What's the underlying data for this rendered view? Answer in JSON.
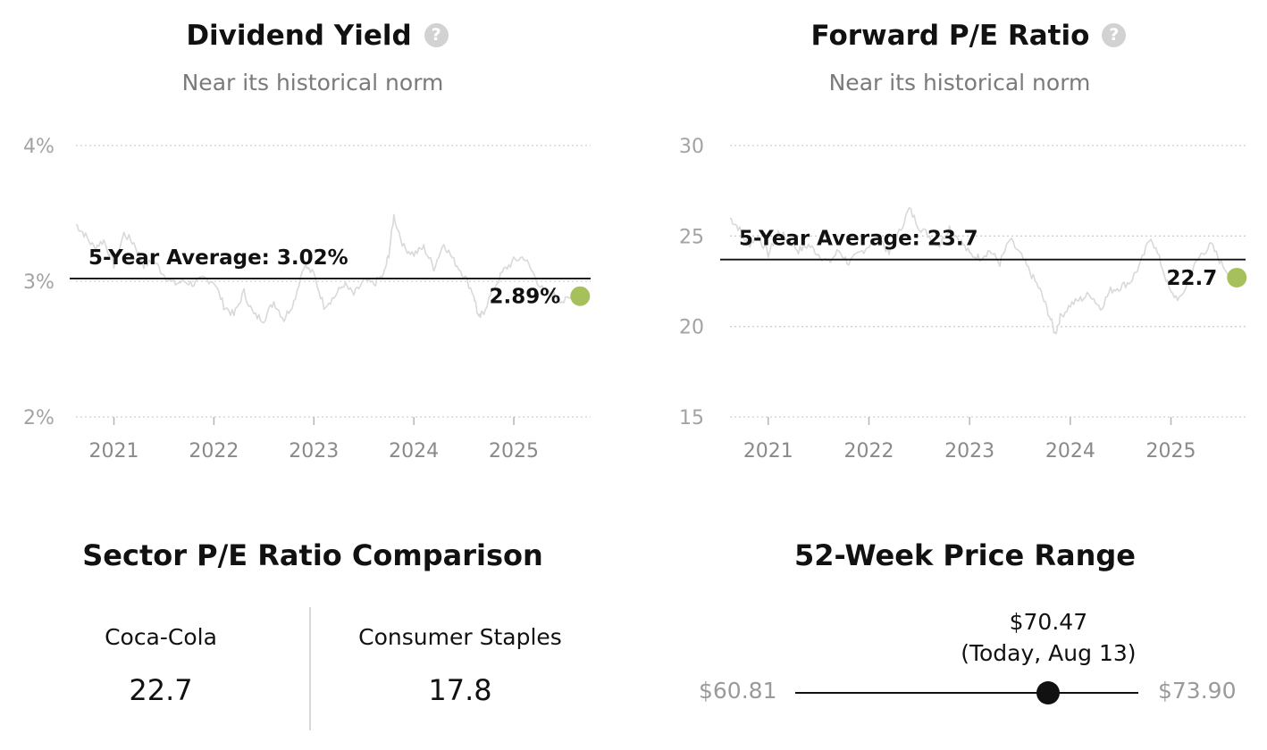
{
  "dividend_yield": {
    "title": "Dividend Yield",
    "subtitle": "Near its historical norm",
    "help_icon": "question-circle-icon",
    "average_label": "5-Year Average: 3.02%",
    "current_label": "2.89%",
    "accent_color": "#a6c15b",
    "chart_data": {
      "type": "line",
      "y_tick_labels": [
        "4%",
        "3%",
        "2%"
      ],
      "y_ticks": [
        4,
        3,
        2
      ],
      "ylim": [
        2,
        4
      ],
      "x_tick_labels": [
        "2021",
        "2022",
        "2023",
        "2024",
        "2025"
      ],
      "x_ticks": [
        2021,
        2022,
        2023,
        2024,
        2025
      ],
      "xlim": [
        2020.62,
        2025.67
      ],
      "grid": true,
      "average": 3.02,
      "current": {
        "x": 2025.61,
        "y": 2.89
      },
      "series": [
        {
          "x": [
            2020.62,
            2020.7,
            2020.8,
            2020.9,
            2021.0,
            2021.1,
            2021.2,
            2021.3,
            2021.4,
            2021.5,
            2021.6,
            2021.7,
            2021.8,
            2021.9,
            2022.0,
            2022.1,
            2022.2,
            2022.3,
            2022.4,
            2022.5,
            2022.6,
            2022.7,
            2022.8,
            2022.9,
            2023.0,
            2023.1,
            2023.2,
            2023.3,
            2023.4,
            2023.5,
            2023.6,
            2023.7,
            2023.75,
            2023.8,
            2023.9,
            2024.0,
            2024.1,
            2024.2,
            2024.3,
            2024.4,
            2024.5,
            2024.6,
            2024.65,
            2024.7,
            2024.8,
            2024.9,
            2025.0,
            2025.1,
            2025.2,
            2025.3,
            2025.4,
            2025.5,
            2025.61
          ],
          "y": [
            3.42,
            3.35,
            3.25,
            3.3,
            3.12,
            3.35,
            3.28,
            3.12,
            3.15,
            3.05,
            2.98,
            3.0,
            2.98,
            3.02,
            3.0,
            2.82,
            2.75,
            2.92,
            2.75,
            2.72,
            2.85,
            2.72,
            2.85,
            3.12,
            3.05,
            2.82,
            2.88,
            2.98,
            2.9,
            3.0,
            2.98,
            3.05,
            3.2,
            3.48,
            3.25,
            3.2,
            3.25,
            3.1,
            3.28,
            3.15,
            3.05,
            2.9,
            2.72,
            2.78,
            2.95,
            3.08,
            3.15,
            3.18,
            3.05,
            2.92,
            2.9,
            2.85,
            2.89
          ]
        }
      ]
    }
  },
  "forward_pe": {
    "title": "Forward P/E Ratio",
    "subtitle": "Near its historical norm",
    "help_icon": "question-circle-icon",
    "average_label": "5-Year Average: 23.7",
    "current_label": "22.7",
    "accent_color": "#a6c15b",
    "chart_data": {
      "type": "line",
      "y_tick_labels": [
        "30",
        "25",
        "20",
        "15"
      ],
      "y_ticks": [
        30,
        25,
        20,
        15
      ],
      "ylim": [
        15,
        30
      ],
      "x_tick_labels": [
        "2021",
        "2022",
        "2023",
        "2024",
        "2025"
      ],
      "x_ticks": [
        2021,
        2022,
        2023,
        2024,
        2025
      ],
      "xlim": [
        2020.62,
        2025.67
      ],
      "grid": true,
      "average": 23.7,
      "current": {
        "x": 2025.61,
        "y": 22.7
      },
      "series": [
        {
          "x": [
            2020.62,
            2020.7,
            2020.8,
            2020.9,
            2021.0,
            2021.1,
            2021.2,
            2021.3,
            2021.4,
            2021.5,
            2021.6,
            2021.7,
            2021.8,
            2021.9,
            2022.0,
            2022.1,
            2022.2,
            2022.3,
            2022.4,
            2022.5,
            2022.6,
            2022.7,
            2022.8,
            2022.9,
            2023.0,
            2023.1,
            2023.2,
            2023.3,
            2023.4,
            2023.5,
            2023.6,
            2023.7,
            2023.78,
            2023.85,
            2023.9,
            2024.0,
            2024.1,
            2024.2,
            2024.3,
            2024.4,
            2024.5,
            2024.6,
            2024.7,
            2024.8,
            2024.9,
            2025.0,
            2025.1,
            2025.2,
            2025.3,
            2025.4,
            2025.5,
            2025.61
          ],
          "y": [
            26.0,
            25.5,
            24.5,
            25.0,
            24.0,
            25.2,
            24.8,
            24.2,
            24.5,
            24.0,
            23.5,
            24.2,
            23.5,
            24.0,
            24.5,
            25.0,
            24.0,
            25.2,
            26.5,
            25.5,
            25.0,
            24.5,
            25.5,
            24.8,
            24.0,
            23.8,
            24.2,
            23.5,
            24.8,
            24.0,
            23.0,
            22.0,
            20.8,
            19.6,
            20.5,
            21.2,
            21.5,
            21.8,
            21.0,
            22.0,
            22.2,
            22.5,
            23.5,
            25.0,
            23.5,
            21.8,
            21.5,
            23.0,
            24.0,
            24.5,
            23.5,
            22.7
          ]
        }
      ]
    }
  },
  "sector": {
    "title": "Sector P/E Ratio Comparison",
    "left_name": "Coca-Cola",
    "left_value": "22.7",
    "right_name": "Consumer Staples",
    "right_value": "17.8"
  },
  "price_range": {
    "title": "52-Week Price Range",
    "low_label": "$60.81",
    "high_label": "$73.90",
    "current_price": "$70.47",
    "current_note": "(Today, Aug 13)",
    "low": 60.81,
    "high": 73.9,
    "current": 70.47
  }
}
